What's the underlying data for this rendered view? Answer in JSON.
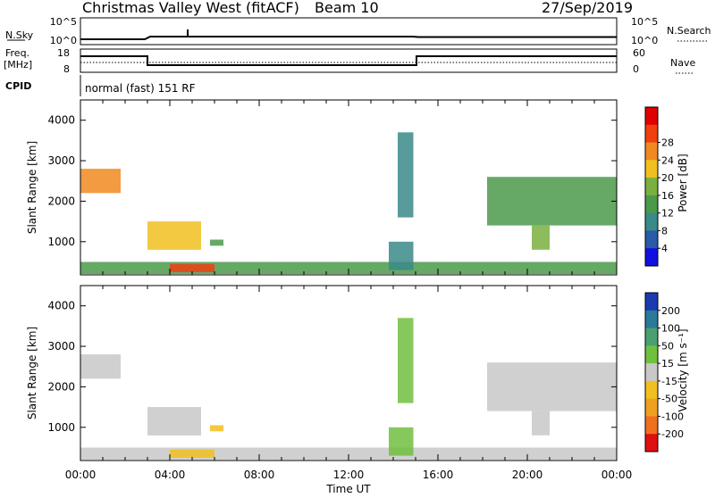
{
  "header": {
    "station": "Christmas Valley West (fitACF)",
    "beam": "Beam 10",
    "date": "27/Sep/2019",
    "cpid_label": "CPID",
    "cpid_value": "normal (fast) 151 RF"
  },
  "nsky_panel": {
    "left_label": "N.Sky",
    "right_label": "N.Search",
    "left_ticks": [
      "10^5",
      "10^0"
    ],
    "right_ticks": [
      "10^5",
      "10^0"
    ]
  },
  "freq_panel": {
    "left_label_1": "Freq.",
    "left_label_2": "[MHz]",
    "right_label": "Nave",
    "left_ticks": [
      "18",
      "8"
    ],
    "right_ticks": [
      "60",
      "0"
    ]
  },
  "chart_data": [
    {
      "type": "heatmap",
      "name": "power",
      "ylabel": "Slant Range [km]",
      "xlabel": "",
      "ylim": [
        180,
        4500
      ],
      "xlim": [
        0,
        24
      ],
      "yticks": [
        1000,
        2000,
        3000,
        4000
      ],
      "colorbar": {
        "title": "Power [dB]",
        "range": [
          0,
          32
        ],
        "ticks": [
          "4",
          "8",
          "12",
          "16",
          "20",
          "24",
          "28"
        ],
        "colors": [
          "#1010e0",
          "#2a5aa8",
          "#3a8a8a",
          "#4a9a4a",
          "#7ab040",
          "#f0c020",
          "#f08a20",
          "#f04010",
          "#e00000"
        ]
      },
      "regions": [
        {
          "t0": 0.0,
          "t1": 1.8,
          "r0": 2200,
          "r1": 2800,
          "level": 22
        },
        {
          "t0": 3.0,
          "t1": 5.4,
          "r0": 800,
          "r1": 1500,
          "level": 18
        },
        {
          "t0": 5.8,
          "t1": 6.4,
          "r0": 900,
          "r1": 1050,
          "level": 12
        },
        {
          "t0": 0.0,
          "t1": 24.0,
          "r0": 200,
          "r1": 500,
          "level": 12
        },
        {
          "t0": 4.0,
          "t1": 6.0,
          "r0": 250,
          "r1": 450,
          "level": 26
        },
        {
          "t0": 13.8,
          "t1": 14.9,
          "r0": 300,
          "r1": 1000,
          "level": 10
        },
        {
          "t0": 14.2,
          "t1": 14.9,
          "r0": 1600,
          "r1": 3700,
          "level": 8
        },
        {
          "t0": 18.2,
          "t1": 24.0,
          "r0": 1400,
          "r1": 2600,
          "level": 14
        },
        {
          "t0": 20.2,
          "t1": 21.0,
          "r0": 800,
          "r1": 1400,
          "level": 16
        }
      ]
    },
    {
      "type": "heatmap",
      "name": "velocity",
      "ylabel": "Slant Range [km]",
      "xlabel": "Time UT",
      "ylim": [
        180,
        4500
      ],
      "xlim": [
        0,
        24
      ],
      "yticks": [
        1000,
        2000,
        3000,
        4000
      ],
      "xticks": [
        "00:00",
        "04:00",
        "08:00",
        "12:00",
        "16:00",
        "20:00",
        "00:00"
      ],
      "colorbar": {
        "title": "Velocity [m s⁻¹]",
        "range": [
          -250,
          250
        ],
        "ticks": [
          "200",
          "100",
          "50",
          "15",
          "-15",
          "-50",
          "-100",
          "-200"
        ],
        "colors": [
          "#1a3ab0",
          "#2a7a9a",
          "#4aa070",
          "#70c040",
          "#c8c8c8",
          "#f0c020",
          "#f0a020",
          "#f07020",
          "#e01010"
        ]
      },
      "regions": [
        {
          "t0": 0.0,
          "t1": 1.8,
          "r0": 2200,
          "r1": 2800,
          "level": 0
        },
        {
          "t0": 3.0,
          "t1": 5.4,
          "r0": 800,
          "r1": 1500,
          "level": 0
        },
        {
          "t0": 5.8,
          "t1": 6.4,
          "r0": 900,
          "r1": 1050,
          "level": -40
        },
        {
          "t0": 0.0,
          "t1": 24.0,
          "r0": 200,
          "r1": 500,
          "level": 20
        },
        {
          "t0": 4.0,
          "t1": 6.0,
          "r0": 250,
          "r1": 450,
          "level": -40
        },
        {
          "t0": 13.8,
          "t1": 14.9,
          "r0": 300,
          "r1": 1000,
          "level": 30
        },
        {
          "t0": 14.2,
          "t1": 14.9,
          "r0": 1600,
          "r1": 3700,
          "level": 60
        },
        {
          "t0": 18.2,
          "t1": 24.0,
          "r0": 1400,
          "r1": 2600,
          "level": 0
        },
        {
          "t0": 20.2,
          "t1": 21.0,
          "r0": 800,
          "r1": 1400,
          "level": 0
        }
      ]
    }
  ]
}
